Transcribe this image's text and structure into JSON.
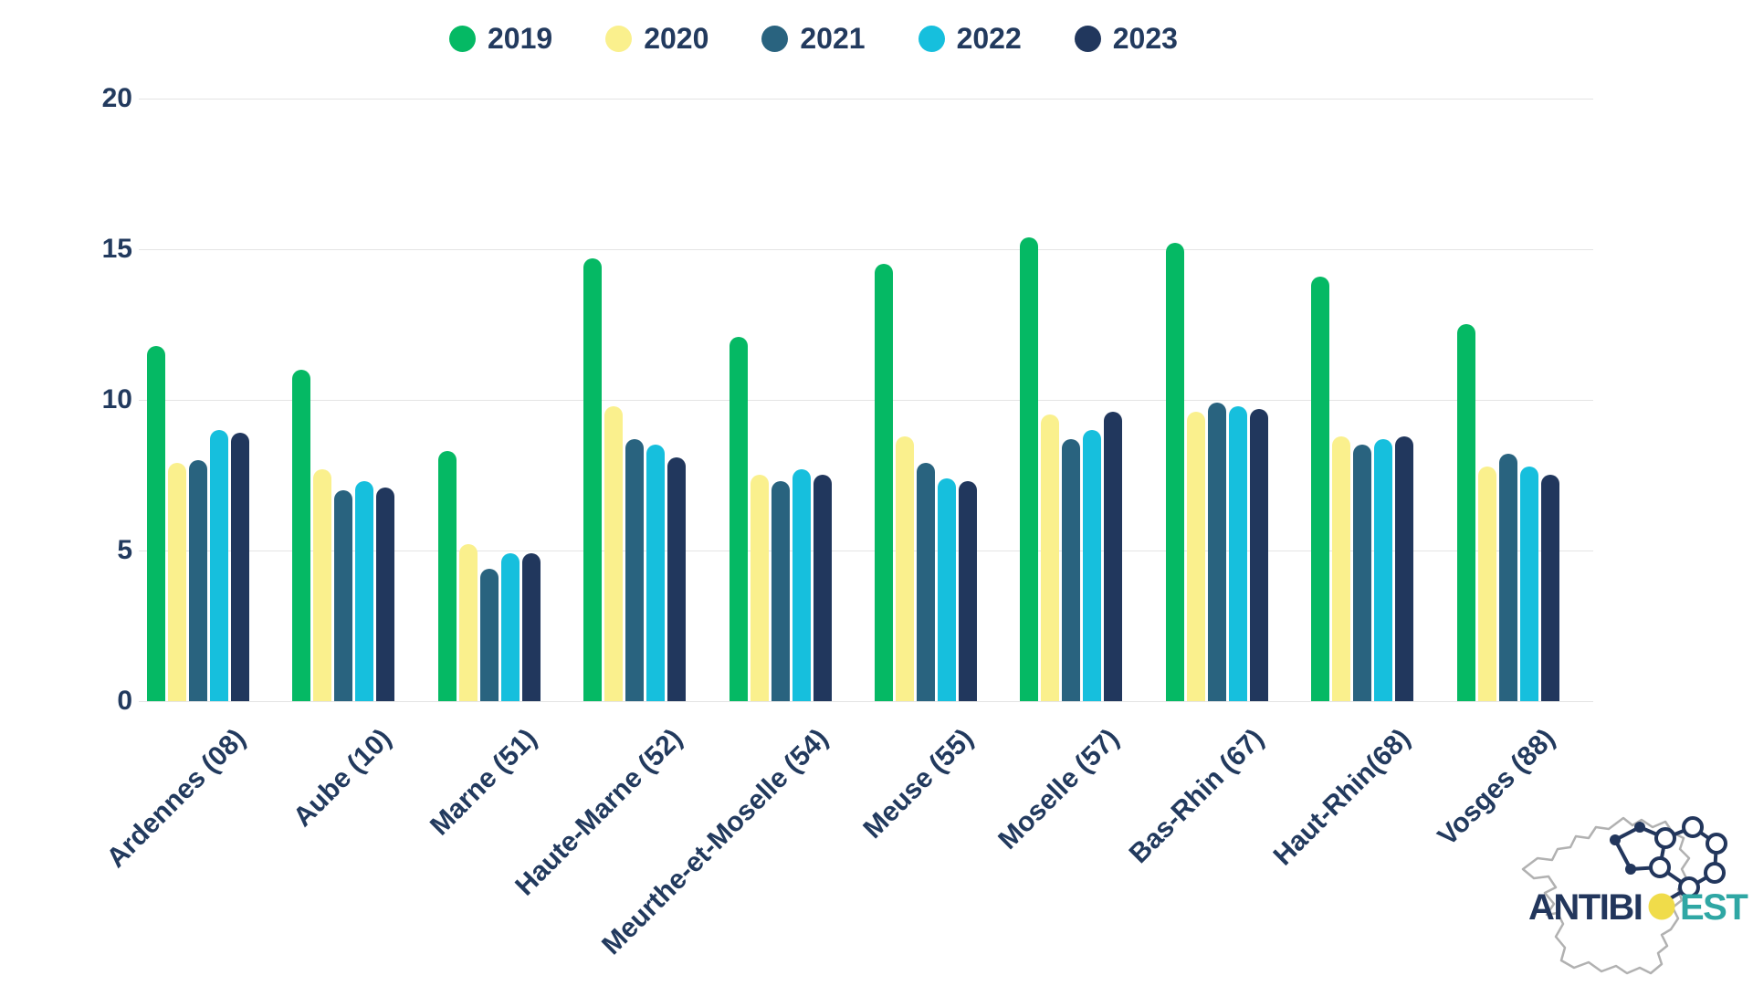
{
  "chart_data": {
    "type": "bar",
    "title": "",
    "xlabel": "",
    "ylabel": "",
    "categories": [
      "Ardennes (08)",
      "Aube (10)",
      "Marne (51)",
      "Haute-Marne (52)",
      "Meurthe-et-Moselle (54)",
      "Meuse (55)",
      "Moselle (57)",
      "Bas-Rhin (67)",
      "Haut-Rhin(68)",
      "Vosges (88)"
    ],
    "series": [
      {
        "name": "2019",
        "color": "#05b964",
        "values": [
          11.8,
          11.0,
          8.3,
          14.7,
          12.1,
          14.5,
          15.4,
          15.2,
          14.1,
          12.5
        ]
      },
      {
        "name": "2020",
        "color": "#faf08d",
        "values": [
          7.9,
          7.7,
          5.2,
          9.8,
          7.5,
          8.8,
          9.5,
          9.6,
          8.8,
          7.8
        ]
      },
      {
        "name": "2021",
        "color": "#29637f",
        "values": [
          8.0,
          7.0,
          4.4,
          8.7,
          7.3,
          7.9,
          8.7,
          9.9,
          8.5,
          8.2
        ]
      },
      {
        "name": "2022",
        "color": "#16bfdd",
        "values": [
          9.0,
          7.3,
          4.9,
          8.5,
          7.7,
          7.4,
          9.0,
          9.8,
          8.7,
          7.8
        ]
      },
      {
        "name": "2023",
        "color": "#21375d",
        "values": [
          8.9,
          7.1,
          4.9,
          8.1,
          7.5,
          7.3,
          9.6,
          9.7,
          8.8,
          7.5
        ]
      }
    ],
    "ylim": [
      0,
      20
    ],
    "yticks": [
      "0",
      "5",
      "10",
      "15",
      "20"
    ],
    "grid": true,
    "legend_position": "top"
  },
  "logo": {
    "part1": "ANTIBI",
    "part2_letter": "O",
    "part3": "EST",
    "colors": {
      "navy": "#22365c",
      "teal": "#2fa7a4",
      "yellow": "#f0dc4a",
      "map_gray": "#b1b1b1"
    }
  }
}
